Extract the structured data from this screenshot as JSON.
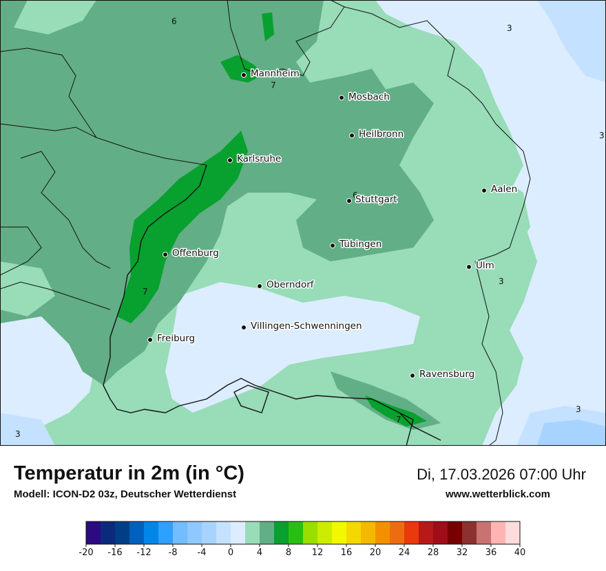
{
  "header": {
    "title": "Temperatur in 2m (in °C)",
    "model": "Modell: ICON-D2 03z, Deutscher Wetterdienst",
    "datetime": "Di, 17.03.2026 07:00 Uhr",
    "website": "www.wetterblick.com"
  },
  "map": {
    "cities": [
      {
        "id": "mannheim",
        "name": "Mannheim"
      },
      {
        "id": "mosbach",
        "name": "Mosbach"
      },
      {
        "id": "heilbronn",
        "name": "Heilbronn"
      },
      {
        "id": "karlsruhe",
        "name": "Karlsruhe"
      },
      {
        "id": "stuttgart",
        "name": "Stuttgart"
      },
      {
        "id": "aalen",
        "name": "Aalen"
      },
      {
        "id": "tuebingen",
        "name": "Tübingen"
      },
      {
        "id": "offenburg",
        "name": "Offenburg"
      },
      {
        "id": "ulm",
        "name": "Ulm"
      },
      {
        "id": "oberndorf",
        "name": "Oberndorf"
      },
      {
        "id": "villingen",
        "name": "Villingen-Schwenningen"
      },
      {
        "id": "freiburg",
        "name": "Freiburg"
      },
      {
        "id": "ravensburg",
        "name": "Ravensburg"
      }
    ],
    "contour_labels": [
      "6",
      "3",
      "7",
      "3",
      "6",
      "3",
      "7",
      "7",
      "3",
      "3"
    ]
  },
  "legend": {
    "colors": [
      "#2c0a82",
      "#0c2a7c",
      "#003f88",
      "#0060c0",
      "#0086e8",
      "#2ea0ff",
      "#72bcff",
      "#8ec8ff",
      "#a6d4ff",
      "#c4e2ff",
      "#dcedff",
      "#98dcb8",
      "#62ae86",
      "#08a02e",
      "#28c010",
      "#9ade00",
      "#ccec00",
      "#f2f800",
      "#f4d800",
      "#f4b800",
      "#f49000",
      "#ee6c10",
      "#e83a0c",
      "#b81818",
      "#a00c18",
      "#780000",
      "#8c3030",
      "#c87272",
      "#ffb4b4",
      "#ffdcdc"
    ],
    "ticks": [
      "-20",
      "-16",
      "-12",
      "-8",
      "-4",
      "0",
      "4",
      "8",
      "12",
      "16",
      "20",
      "24",
      "28",
      "32",
      "36",
      "40"
    ]
  }
}
